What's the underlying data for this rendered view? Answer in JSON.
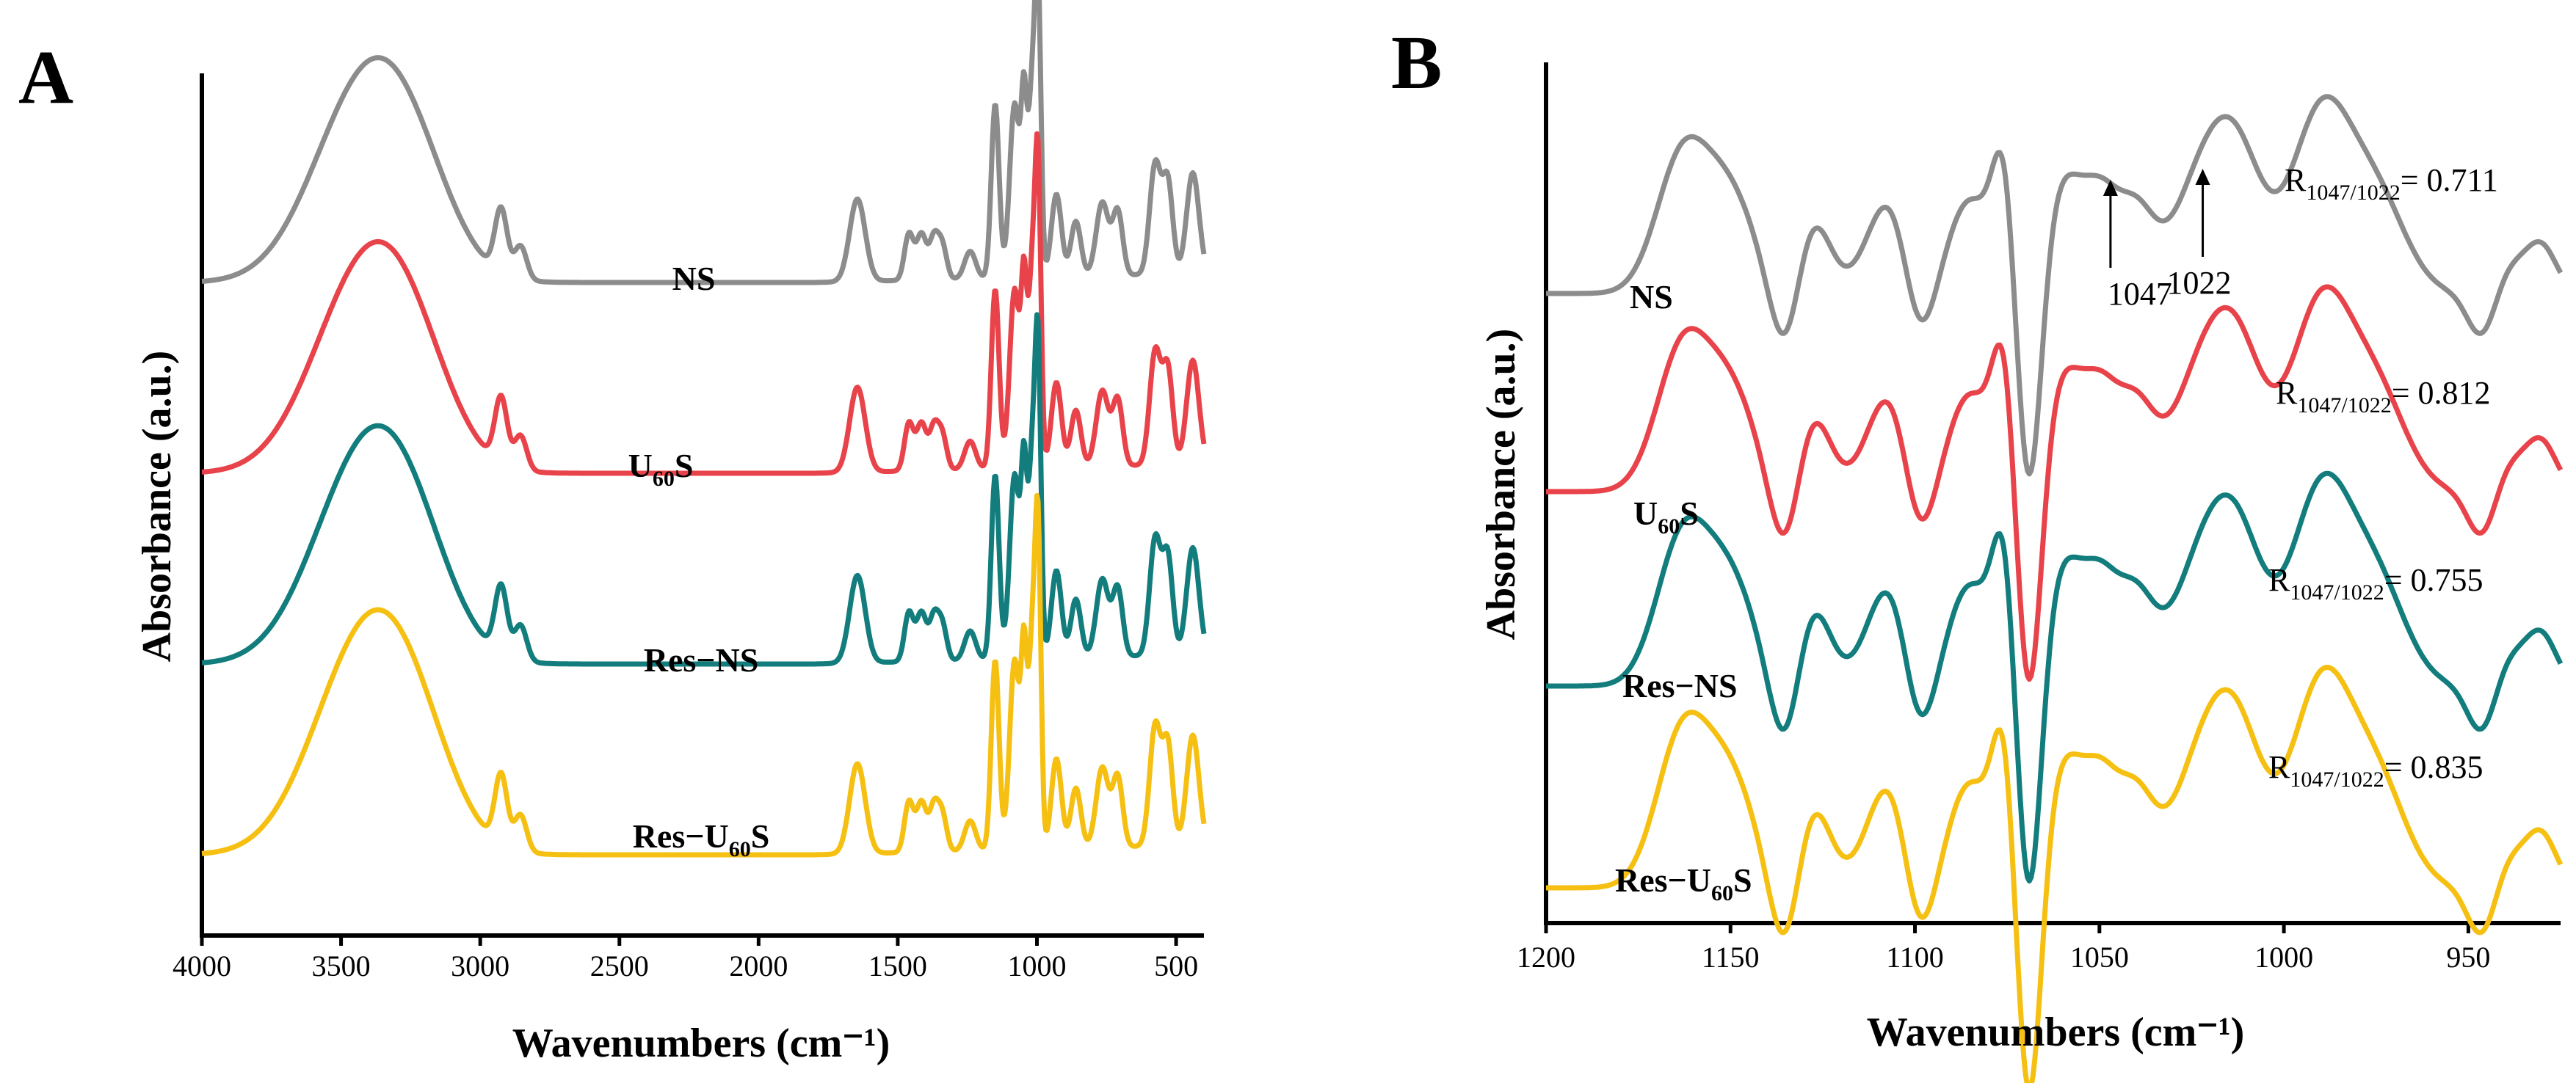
{
  "chart_data": [
    {
      "panel": "A",
      "type": "line",
      "title": "",
      "xlabel": "Wavenumbers (cm⁻¹)",
      "ylabel": "Absorbance (a.u.)",
      "xlim": [
        4000,
        400
      ],
      "x_reversed": true,
      "xticks": [
        4000,
        3500,
        3000,
        2500,
        2000,
        1500,
        1000,
        500
      ],
      "y_ticks_shown": false,
      "grid": false,
      "series": [
        {
          "name": "NS",
          "label_main": "NS",
          "label_sub": "",
          "label_tail": "",
          "color": "#8c8c8c",
          "offset": 3.0
        },
        {
          "name": "U60S",
          "label_main": "U",
          "label_sub": "60",
          "label_tail": "S",
          "color": "#e8434a",
          "offset": 2.0
        },
        {
          "name": "Res−NS",
          "label_main": "Res−NS",
          "label_sub": "",
          "label_tail": "",
          "color": "#127d7c",
          "offset": 1.0
        },
        {
          "name": "Res−U60S",
          "label_main": "Res−U",
          "label_sub": "60",
          "label_tail": "S",
          "color": "#f6c012",
          "offset": 0.0
        }
      ],
      "annotations": []
    },
    {
      "panel": "B",
      "type": "line",
      "title": "",
      "xlabel": "Wavenumbers (cm⁻¹)",
      "ylabel": "Absorbance (a.u.)",
      "xlim": [
        1200,
        925
      ],
      "x_reversed": true,
      "xticks": [
        1200,
        1150,
        1100,
        1050,
        1000,
        950
      ],
      "y_ticks_shown": false,
      "grid": false,
      "series": [
        {
          "name": "NS",
          "label_main": "NS",
          "label_sub": "",
          "label_tail": "",
          "color": "#8c8c8c",
          "offset": 3.0,
          "ratio_value": "0.711"
        },
        {
          "name": "U60S",
          "label_main": "U",
          "label_sub": "60",
          "label_tail": "S",
          "color": "#e8434a",
          "offset": 2.0,
          "ratio_value": "0.812"
        },
        {
          "name": "Res−NS",
          "label_main": "Res−NS",
          "label_sub": "",
          "label_tail": "",
          "color": "#127d7c",
          "offset": 1.0,
          "ratio_value": "0.755"
        },
        {
          "name": "Res−U60S",
          "label_main": "Res−U",
          "label_sub": "60",
          "label_tail": "S",
          "color": "#f6c012",
          "offset": 0.0,
          "ratio_value": "0.835"
        }
      ],
      "ratio_prefix": "R",
      "ratio_subscript": "1047/1022",
      "ratio_sep": "= ",
      "annotations": [
        {
          "text": "1047",
          "x": 1047
        },
        {
          "text": "1022",
          "x": 1022
        }
      ]
    }
  ]
}
